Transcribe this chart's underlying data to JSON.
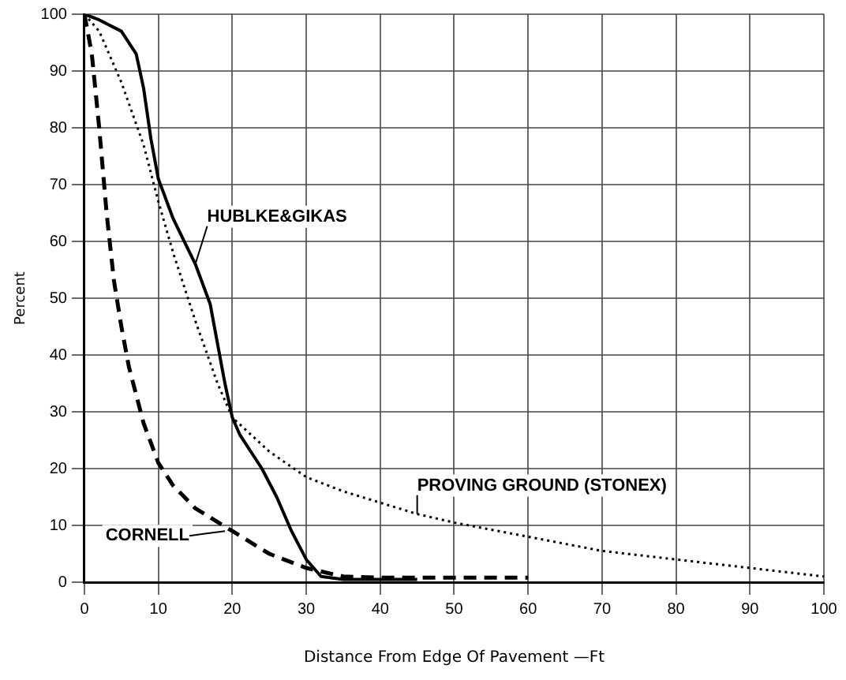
{
  "chart_data": {
    "type": "line",
    "xlabel": "Distance From Edge Of Pavement —Ft",
    "ylabel": "Percent",
    "xlim": [
      0,
      100
    ],
    "ylim": [
      0,
      100
    ],
    "xticks": [
      0,
      10,
      20,
      30,
      40,
      50,
      60,
      70,
      80,
      90,
      100
    ],
    "yticks": [
      0,
      10,
      20,
      30,
      40,
      50,
      60,
      70,
      80,
      90,
      100
    ],
    "grid": true,
    "marker": "none",
    "series": [
      {
        "color": "#000000",
        "line_style": "solid",
        "x": [
          0,
          2,
          5,
          7,
          8,
          9,
          10,
          12,
          15,
          17,
          18,
          19,
          20,
          21,
          24,
          26,
          28,
          30,
          32,
          35,
          40,
          45
        ],
        "values": [
          100,
          99,
          97,
          93,
          87,
          78,
          71,
          64,
          56,
          49,
          42,
          35,
          29,
          26,
          20,
          15,
          9,
          4,
          1,
          0.5,
          0.5,
          0.5
        ]
      },
      {
        "color": "#000000",
        "line_style": "dotted",
        "x": [
          0,
          2,
          5,
          8,
          10,
          12,
          15,
          18,
          20,
          25,
          30,
          35,
          40,
          45,
          50,
          60,
          70,
          80,
          90,
          100
        ],
        "values": [
          100,
          97,
          88,
          77,
          67,
          58,
          46,
          35,
          29,
          23,
          18.5,
          16,
          14,
          12,
          10.5,
          8,
          5.5,
          4,
          2.5,
          1
        ]
      },
      {
        "color": "#000000",
        "line_style": "dashed",
        "x": [
          0,
          1,
          2,
          3,
          4,
          5,
          6,
          8,
          10,
          12,
          15,
          20,
          25,
          30,
          35,
          40,
          50,
          60
        ],
        "values": [
          100,
          93,
          80,
          65,
          53,
          45,
          38,
          28,
          21,
          17,
          13,
          9,
          5,
          2.5,
          1,
          0.8,
          0.8,
          0.8
        ]
      }
    ],
    "annotations": [
      {
        "text": "HUBLKE&GIKAS",
        "x": 15,
        "y": 56
      },
      {
        "text": "PROVING GROUND (STONEX)",
        "x": 45,
        "y": 12
      },
      {
        "text": "CORNELL",
        "x": 19,
        "y": 9
      }
    ]
  }
}
